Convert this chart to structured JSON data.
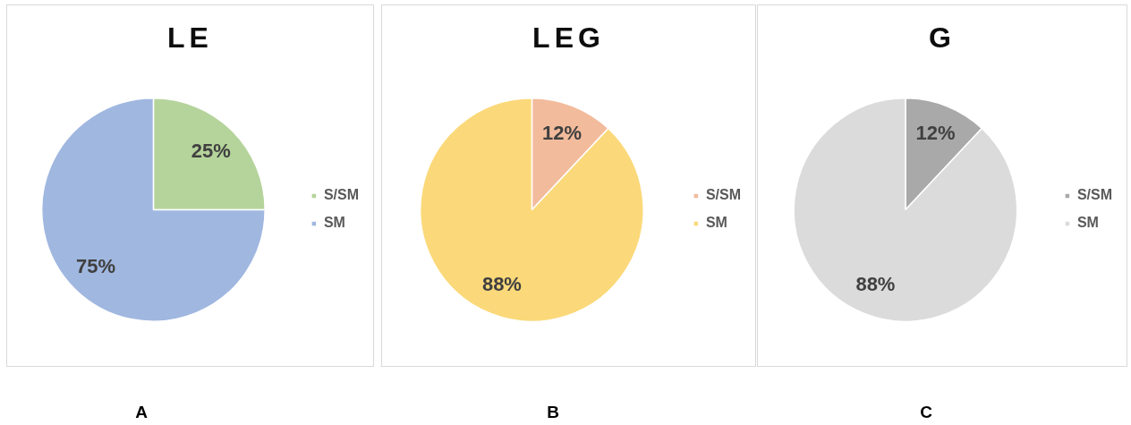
{
  "chart_data": [
    {
      "type": "pie",
      "title": "LE",
      "categories": [
        "S/SM",
        "SM"
      ],
      "values": [
        25,
        75
      ],
      "colors": [
        "#b5d49b",
        "#a0b7e0"
      ],
      "value_labels": [
        "25%",
        "75%"
      ],
      "legend": "right",
      "annotations": [
        "A"
      ]
    },
    {
      "type": "pie",
      "title": "LEG",
      "categories": [
        "S/SM",
        "SM"
      ],
      "values": [
        12,
        88
      ],
      "colors": [
        "#f2bb9c",
        "#fbd97a"
      ],
      "value_labels": [
        "12%",
        "88%"
      ],
      "legend": "right",
      "annotations": [
        "B"
      ]
    },
    {
      "type": "pie",
      "title": "G",
      "categories": [
        "S/SM",
        "SM"
      ],
      "values": [
        12,
        88
      ],
      "colors": [
        "#a9a9a9",
        "#dbdbdb"
      ],
      "value_labels": [
        "12%",
        "88%"
      ],
      "legend": "right",
      "annotations": [
        "C"
      ]
    }
  ]
}
